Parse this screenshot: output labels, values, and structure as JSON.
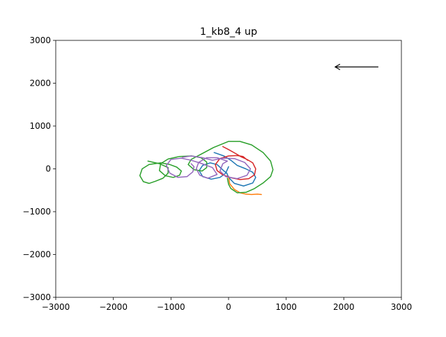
{
  "chart_data": {
    "type": "line",
    "title": "1_kb8_4 up",
    "xlabel": "",
    "ylabel": "",
    "xlim": [
      -3000,
      3000
    ],
    "ylim": [
      -3000,
      3000
    ],
    "xticks": [
      -3000,
      -2000,
      -1000,
      0,
      1000,
      2000,
      3000
    ],
    "yticks": [
      -3000,
      -2000,
      -1000,
      0,
      1000,
      2000,
      3000
    ],
    "xtick_labels": [
      "−3000",
      "−2000",
      "−1000",
      "0",
      "1000",
      "2000",
      "3000"
    ],
    "ytick_labels": [
      "−3000",
      "−2000",
      "−1000",
      "0",
      "1000",
      "2000",
      "3000"
    ],
    "grid": false,
    "legend": "none",
    "arrow": {
      "from": [
        2600,
        2380
      ],
      "to": [
        1850,
        2380
      ],
      "color": "#000000"
    },
    "series": [
      {
        "color": "#1f77b4",
        "points": [
          [
            -250,
            380
          ],
          [
            -80,
            300
          ],
          [
            50,
            190
          ],
          [
            150,
            80
          ],
          [
            300,
            0
          ],
          [
            420,
            -80
          ],
          [
            470,
            -200
          ],
          [
            420,
            -330
          ],
          [
            260,
            -400
          ],
          [
            100,
            -340
          ],
          [
            0,
            -200
          ],
          [
            -30,
            -100
          ],
          [
            -80,
            -50
          ],
          [
            -200,
            100
          ],
          [
            -320,
            140
          ],
          [
            -450,
            80
          ],
          [
            -510,
            -40
          ],
          [
            -450,
            -180
          ],
          [
            -300,
            -240
          ],
          [
            -150,
            -200
          ],
          [
            -50,
            -100
          ],
          [
            0,
            50
          ]
        ]
      },
      {
        "color": "#ff7f0e",
        "points": [
          [
            0,
            -200
          ],
          [
            20,
            -350
          ],
          [
            100,
            -480
          ],
          [
            200,
            -560
          ],
          [
            300,
            -590
          ],
          [
            400,
            -600
          ],
          [
            500,
            -590
          ],
          [
            570,
            -600
          ]
        ]
      },
      {
        "color": "#2ca02c",
        "points": [
          [
            -1400,
            180
          ],
          [
            -1200,
            120
          ],
          [
            -1050,
            30
          ],
          [
            -1050,
            -100
          ],
          [
            -1140,
            -220
          ],
          [
            -1270,
            -290
          ],
          [
            -1380,
            -340
          ],
          [
            -1480,
            -300
          ],
          [
            -1540,
            -160
          ],
          [
            -1500,
            0
          ],
          [
            -1380,
            100
          ],
          [
            -1180,
            140
          ],
          [
            -1020,
            100
          ],
          [
            -900,
            40
          ],
          [
            -820,
            -50
          ],
          [
            -850,
            -150
          ],
          [
            -960,
            -200
          ],
          [
            -1100,
            -160
          ],
          [
            -1200,
            -40
          ],
          [
            -1180,
            120
          ],
          [
            -1050,
            230
          ],
          [
            -850,
            290
          ],
          [
            -640,
            300
          ],
          [
            -480,
            260
          ],
          [
            -380,
            160
          ],
          [
            -380,
            30
          ],
          [
            -460,
            -50
          ],
          [
            -600,
            -20
          ],
          [
            -700,
            100
          ],
          [
            -650,
            220
          ],
          [
            -480,
            340
          ],
          [
            -260,
            500
          ],
          [
            0,
            640
          ],
          [
            200,
            640
          ],
          [
            400,
            560
          ],
          [
            600,
            380
          ],
          [
            730,
            180
          ],
          [
            770,
            -20
          ],
          [
            730,
            -180
          ],
          [
            600,
            -330
          ],
          [
            450,
            -460
          ],
          [
            300,
            -550
          ],
          [
            150,
            -560
          ],
          [
            40,
            -460
          ],
          [
            0,
            -360
          ],
          [
            -20,
            -220
          ]
        ]
      },
      {
        "color": "#d62728",
        "points": [
          [
            -100,
            520
          ],
          [
            0,
            450
          ],
          [
            120,
            360
          ],
          [
            220,
            280
          ],
          [
            320,
            220
          ],
          [
            420,
            140
          ],
          [
            470,
            0
          ],
          [
            450,
            -140
          ],
          [
            350,
            -230
          ],
          [
            200,
            -250
          ],
          [
            50,
            -210
          ],
          [
            -100,
            -140
          ],
          [
            -200,
            -40
          ],
          [
            -230,
            100
          ],
          [
            -150,
            240
          ],
          [
            0,
            300
          ],
          [
            150,
            310
          ],
          [
            250,
            290
          ],
          [
            330,
            200
          ]
        ]
      },
      {
        "color": "#9467bd",
        "points": [
          [
            -800,
            270
          ],
          [
            -650,
            300
          ],
          [
            -450,
            260
          ],
          [
            -280,
            200
          ],
          [
            -100,
            250
          ],
          [
            100,
            240
          ],
          [
            280,
            150
          ],
          [
            380,
            0
          ],
          [
            320,
            -150
          ],
          [
            150,
            -230
          ],
          [
            -50,
            -180
          ],
          [
            -150,
            -50
          ],
          [
            -100,
            120
          ],
          [
            -20,
            180
          ],
          [
            -200,
            260
          ],
          [
            -380,
            260
          ],
          [
            -520,
            150
          ],
          [
            -560,
            0
          ],
          [
            -500,
            -150
          ],
          [
            -360,
            -220
          ],
          [
            -200,
            -130
          ],
          [
            -280,
            30
          ],
          [
            -480,
            130
          ],
          [
            -650,
            200
          ],
          [
            -820,
            250
          ],
          [
            -1000,
            220
          ],
          [
            -1080,
            80
          ],
          [
            -1020,
            -100
          ],
          [
            -880,
            -200
          ],
          [
            -720,
            -180
          ],
          [
            -620,
            -70
          ],
          [
            -600,
            50
          ],
          [
            -650,
            120
          ]
        ]
      }
    ]
  }
}
